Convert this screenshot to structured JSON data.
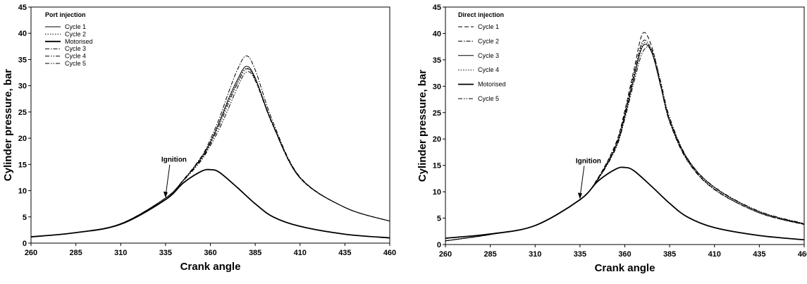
{
  "chart_data": [
    {
      "type": "line",
      "title": "",
      "xlabel": "Crank angle",
      "ylabel": "Cylinder pressure, bar",
      "xlim": [
        260,
        460
      ],
      "ylim": [
        0,
        45
      ],
      "xticks": [
        "260",
        "285",
        "310",
        "335",
        "360",
        "385",
        "410",
        "435",
        "460"
      ],
      "yticks": [
        "0",
        "5",
        "10",
        "15",
        "20",
        "25",
        "30",
        "35",
        "40",
        "45"
      ],
      "grid": false,
      "legend_title": "Port injection",
      "legend_position": "top-left",
      "annotation": {
        "text": "Ignition",
        "x": 335,
        "y": 8.5
      },
      "series": [
        {
          "name": "Cycle 1",
          "dash": "solid",
          "width": 1,
          "x": [
            260,
            285,
            310,
            335,
            345,
            355,
            360,
            365,
            370,
            375,
            380,
            385,
            395,
            410,
            435,
            460
          ],
          "y": [
            1.2,
            2.0,
            3.7,
            8.6,
            12.0,
            16.3,
            19.3,
            23.1,
            27.4,
            31.1,
            33.7,
            31.5,
            22.5,
            12.5,
            6.8,
            4.2
          ]
        },
        {
          "name": "Cycle 2",
          "dash": "dotted",
          "width": 1,
          "x": [
            260,
            285,
            310,
            335,
            345,
            355,
            360,
            365,
            370,
            375,
            380,
            385,
            395,
            410,
            435,
            460
          ],
          "y": [
            1.2,
            2.0,
            3.7,
            8.6,
            12.0,
            16.2,
            19.2,
            22.9,
            27.0,
            30.6,
            33.3,
            31.3,
            22.3,
            12.4,
            6.8,
            4.2
          ]
        },
        {
          "name": "Motorised",
          "dash": "solid",
          "width": 1.8,
          "x": [
            260,
            285,
            310,
            335,
            345,
            355,
            360,
            365,
            375,
            385,
            395,
            410,
            435,
            460
          ],
          "y": [
            1.2,
            2.0,
            3.6,
            8.3,
            11.5,
            13.7,
            14.0,
            13.5,
            10.6,
            7.5,
            5.0,
            3.2,
            1.7,
            1.0
          ]
        },
        {
          "name": "Cycle 3",
          "dash": "dashdot",
          "width": 1,
          "x": [
            260,
            285,
            310,
            335,
            345,
            355,
            360,
            365,
            370,
            375,
            380,
            385,
            395,
            410,
            435,
            460
          ],
          "y": [
            1.2,
            2.0,
            3.7,
            8.6,
            12.1,
            16.5,
            19.8,
            23.8,
            28.6,
            33.0,
            35.7,
            33.0,
            23.0,
            12.6,
            6.8,
            4.2
          ]
        },
        {
          "name": "Cycle 4",
          "dash": "dashdotdot",
          "width": 1,
          "x": [
            260,
            285,
            310,
            335,
            345,
            355,
            360,
            365,
            370,
            375,
            380,
            385,
            395,
            410,
            435,
            460
          ],
          "y": [
            1.2,
            2.0,
            3.7,
            8.6,
            11.9,
            15.8,
            18.6,
            21.8,
            25.6,
            29.6,
            32.6,
            31.0,
            22.3,
            12.4,
            6.8,
            4.2
          ]
        },
        {
          "name": "Cycle 5",
          "dash": "dashdotdot",
          "width": 1,
          "x": [
            260,
            285,
            310,
            335,
            345,
            355,
            360,
            365,
            370,
            375,
            380,
            385,
            395,
            410,
            435,
            460
          ],
          "y": [
            1.2,
            2.0,
            3.7,
            8.6,
            12.0,
            16.0,
            19.0,
            22.5,
            26.6,
            30.4,
            33.2,
            31.2,
            22.4,
            12.4,
            6.8,
            4.2
          ]
        }
      ]
    },
    {
      "type": "line",
      "title": "",
      "xlabel": "Crank angle",
      "ylabel": "Cylinder pressure, bar",
      "xlim": [
        260,
        460
      ],
      "ylim": [
        0,
        45
      ],
      "xticks": [
        "260",
        "285",
        "310",
        "335",
        "360",
        "385",
        "410",
        "435",
        "460"
      ],
      "yticks": [
        "0",
        "5",
        "10",
        "15",
        "20",
        "25",
        "30",
        "35",
        "40",
        "45"
      ],
      "grid": false,
      "legend_title": "Direct injection",
      "legend_position": "top-left",
      "annotation": {
        "text": "Ignition",
        "x": 335,
        "y": 8.5
      },
      "series": [
        {
          "name": "Cycle 1",
          "dash": "dashed",
          "width": 1,
          "x": [
            260,
            285,
            310,
            335,
            345,
            355,
            360,
            365,
            370,
            375,
            380,
            385,
            395,
            410,
            435,
            460
          ],
          "y": [
            0.7,
            1.9,
            3.6,
            8.5,
            12.6,
            19.2,
            25.4,
            33.0,
            40.0,
            37.5,
            30.5,
            23.5,
            16.0,
            10.5,
            6.0,
            3.8
          ]
        },
        {
          "name": "Cycle 2",
          "dash": "dashdot",
          "width": 1,
          "x": [
            260,
            285,
            310,
            335,
            345,
            355,
            360,
            365,
            370,
            375,
            380,
            385,
            395,
            410,
            435,
            460
          ],
          "y": [
            0.7,
            1.9,
            3.6,
            8.5,
            12.5,
            18.9,
            24.9,
            32.2,
            38.5,
            36.7,
            30.0,
            23.2,
            15.8,
            10.4,
            6.0,
            3.8
          ]
        },
        {
          "name": "Cycle 3",
          "dash": "solid",
          "width": 1,
          "x": [
            260,
            285,
            310,
            335,
            345,
            355,
            360,
            365,
            370,
            375,
            380,
            385,
            395,
            410,
            435,
            460
          ],
          "y": [
            0.7,
            1.9,
            3.6,
            8.5,
            12.4,
            18.5,
            24.3,
            31.4,
            37.6,
            36.4,
            30.1,
            23.6,
            16.2,
            10.8,
            6.2,
            3.9
          ]
        },
        {
          "name": "Cycle 4",
          "dash": "dotted",
          "width": 1,
          "x": [
            260,
            285,
            310,
            335,
            345,
            355,
            360,
            365,
            370,
            375,
            380,
            385,
            395,
            410,
            435,
            460
          ],
          "y": [
            0.7,
            1.9,
            3.6,
            8.5,
            12.5,
            18.7,
            24.6,
            31.8,
            38.0,
            36.5,
            30.0,
            23.3,
            15.9,
            10.5,
            6.0,
            3.8
          ]
        },
        {
          "name": "Motorised",
          "dash": "solid",
          "width": 1.8,
          "x": [
            260,
            285,
            310,
            335,
            345,
            355,
            360,
            365,
            375,
            385,
            395,
            410,
            435,
            460
          ],
          "y": [
            1.2,
            2.0,
            3.6,
            8.5,
            12.0,
            14.3,
            14.6,
            14.0,
            11.0,
            7.8,
            5.2,
            3.2,
            1.7,
            0.9
          ]
        },
        {
          "name": "Cycle 5",
          "dash": "dashdotdot",
          "width": 1,
          "x": [
            260,
            285,
            310,
            335,
            345,
            355,
            360,
            365,
            370,
            375,
            380,
            385,
            395,
            410,
            435,
            460
          ],
          "y": [
            0.7,
            1.9,
            3.6,
            8.5,
            12.3,
            18.2,
            23.8,
            30.6,
            36.5,
            36.9,
            30.9,
            24.1,
            16.3,
            10.9,
            6.3,
            4.0
          ]
        }
      ]
    }
  ]
}
